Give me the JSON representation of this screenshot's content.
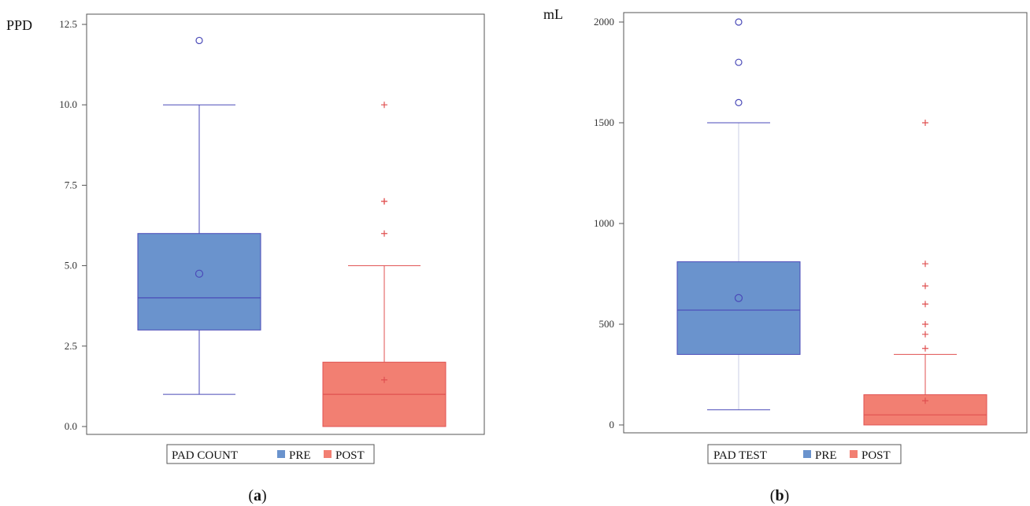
{
  "chart_data": [
    {
      "type": "box",
      "panel_label": "a",
      "ylabel": "PPD",
      "ylim": [
        0,
        12.5
      ],
      "yticks": [
        0.0,
        2.5,
        5.0,
        7.5,
        10.0,
        12.5
      ],
      "ytick_labels": [
        "0.0",
        "2.5",
        "5.0",
        "7.5",
        "10.0",
        "12.5"
      ],
      "legend": {
        "title": "PAD COUNT",
        "position": "bottom"
      },
      "series": [
        {
          "name": "PRE",
          "color": "#6a93cd",
          "edge": "#4a4ab8",
          "min": 1,
          "q1": 3,
          "median": 4,
          "q3": 6,
          "max": 10,
          "mean": 4.75,
          "outliers": [
            12
          ],
          "outlier_marker": "circle"
        },
        {
          "name": "POST",
          "color": "#f27f72",
          "edge": "#e05050",
          "min": 0,
          "q1": 0,
          "median": 1,
          "q3": 2,
          "max": 5,
          "mean": 1.45,
          "outliers": [
            6,
            7,
            7,
            10
          ],
          "outlier_marker": "plus"
        }
      ]
    },
    {
      "type": "box",
      "panel_label": "b",
      "ylabel": "mL",
      "ylim": [
        0,
        2000
      ],
      "yticks": [
        0,
        500,
        1000,
        1500,
        2000
      ],
      "ytick_labels": [
        "0",
        "500",
        "1000",
        "1500",
        "2000"
      ],
      "legend": {
        "title": "PAD TEST",
        "position": "bottom"
      },
      "series": [
        {
          "name": "PRE",
          "color": "#6a93cd",
          "edge": "#4a4ab8",
          "whisker_color": "#c8cce6",
          "min": 75,
          "q1": 350,
          "median": 570,
          "q3": 810,
          "max": 1500,
          "mean": 630,
          "outliers": [
            1600,
            1800,
            2000
          ],
          "outlier_marker": "circle"
        },
        {
          "name": "POST",
          "color": "#f27f72",
          "edge": "#e05050",
          "min": 0,
          "q1": 0,
          "median": 50,
          "q3": 150,
          "max": 350,
          "mean": 120,
          "outliers": [
            380,
            450,
            500,
            600,
            690,
            800,
            1500
          ],
          "outlier_marker": "plus"
        }
      ]
    }
  ]
}
